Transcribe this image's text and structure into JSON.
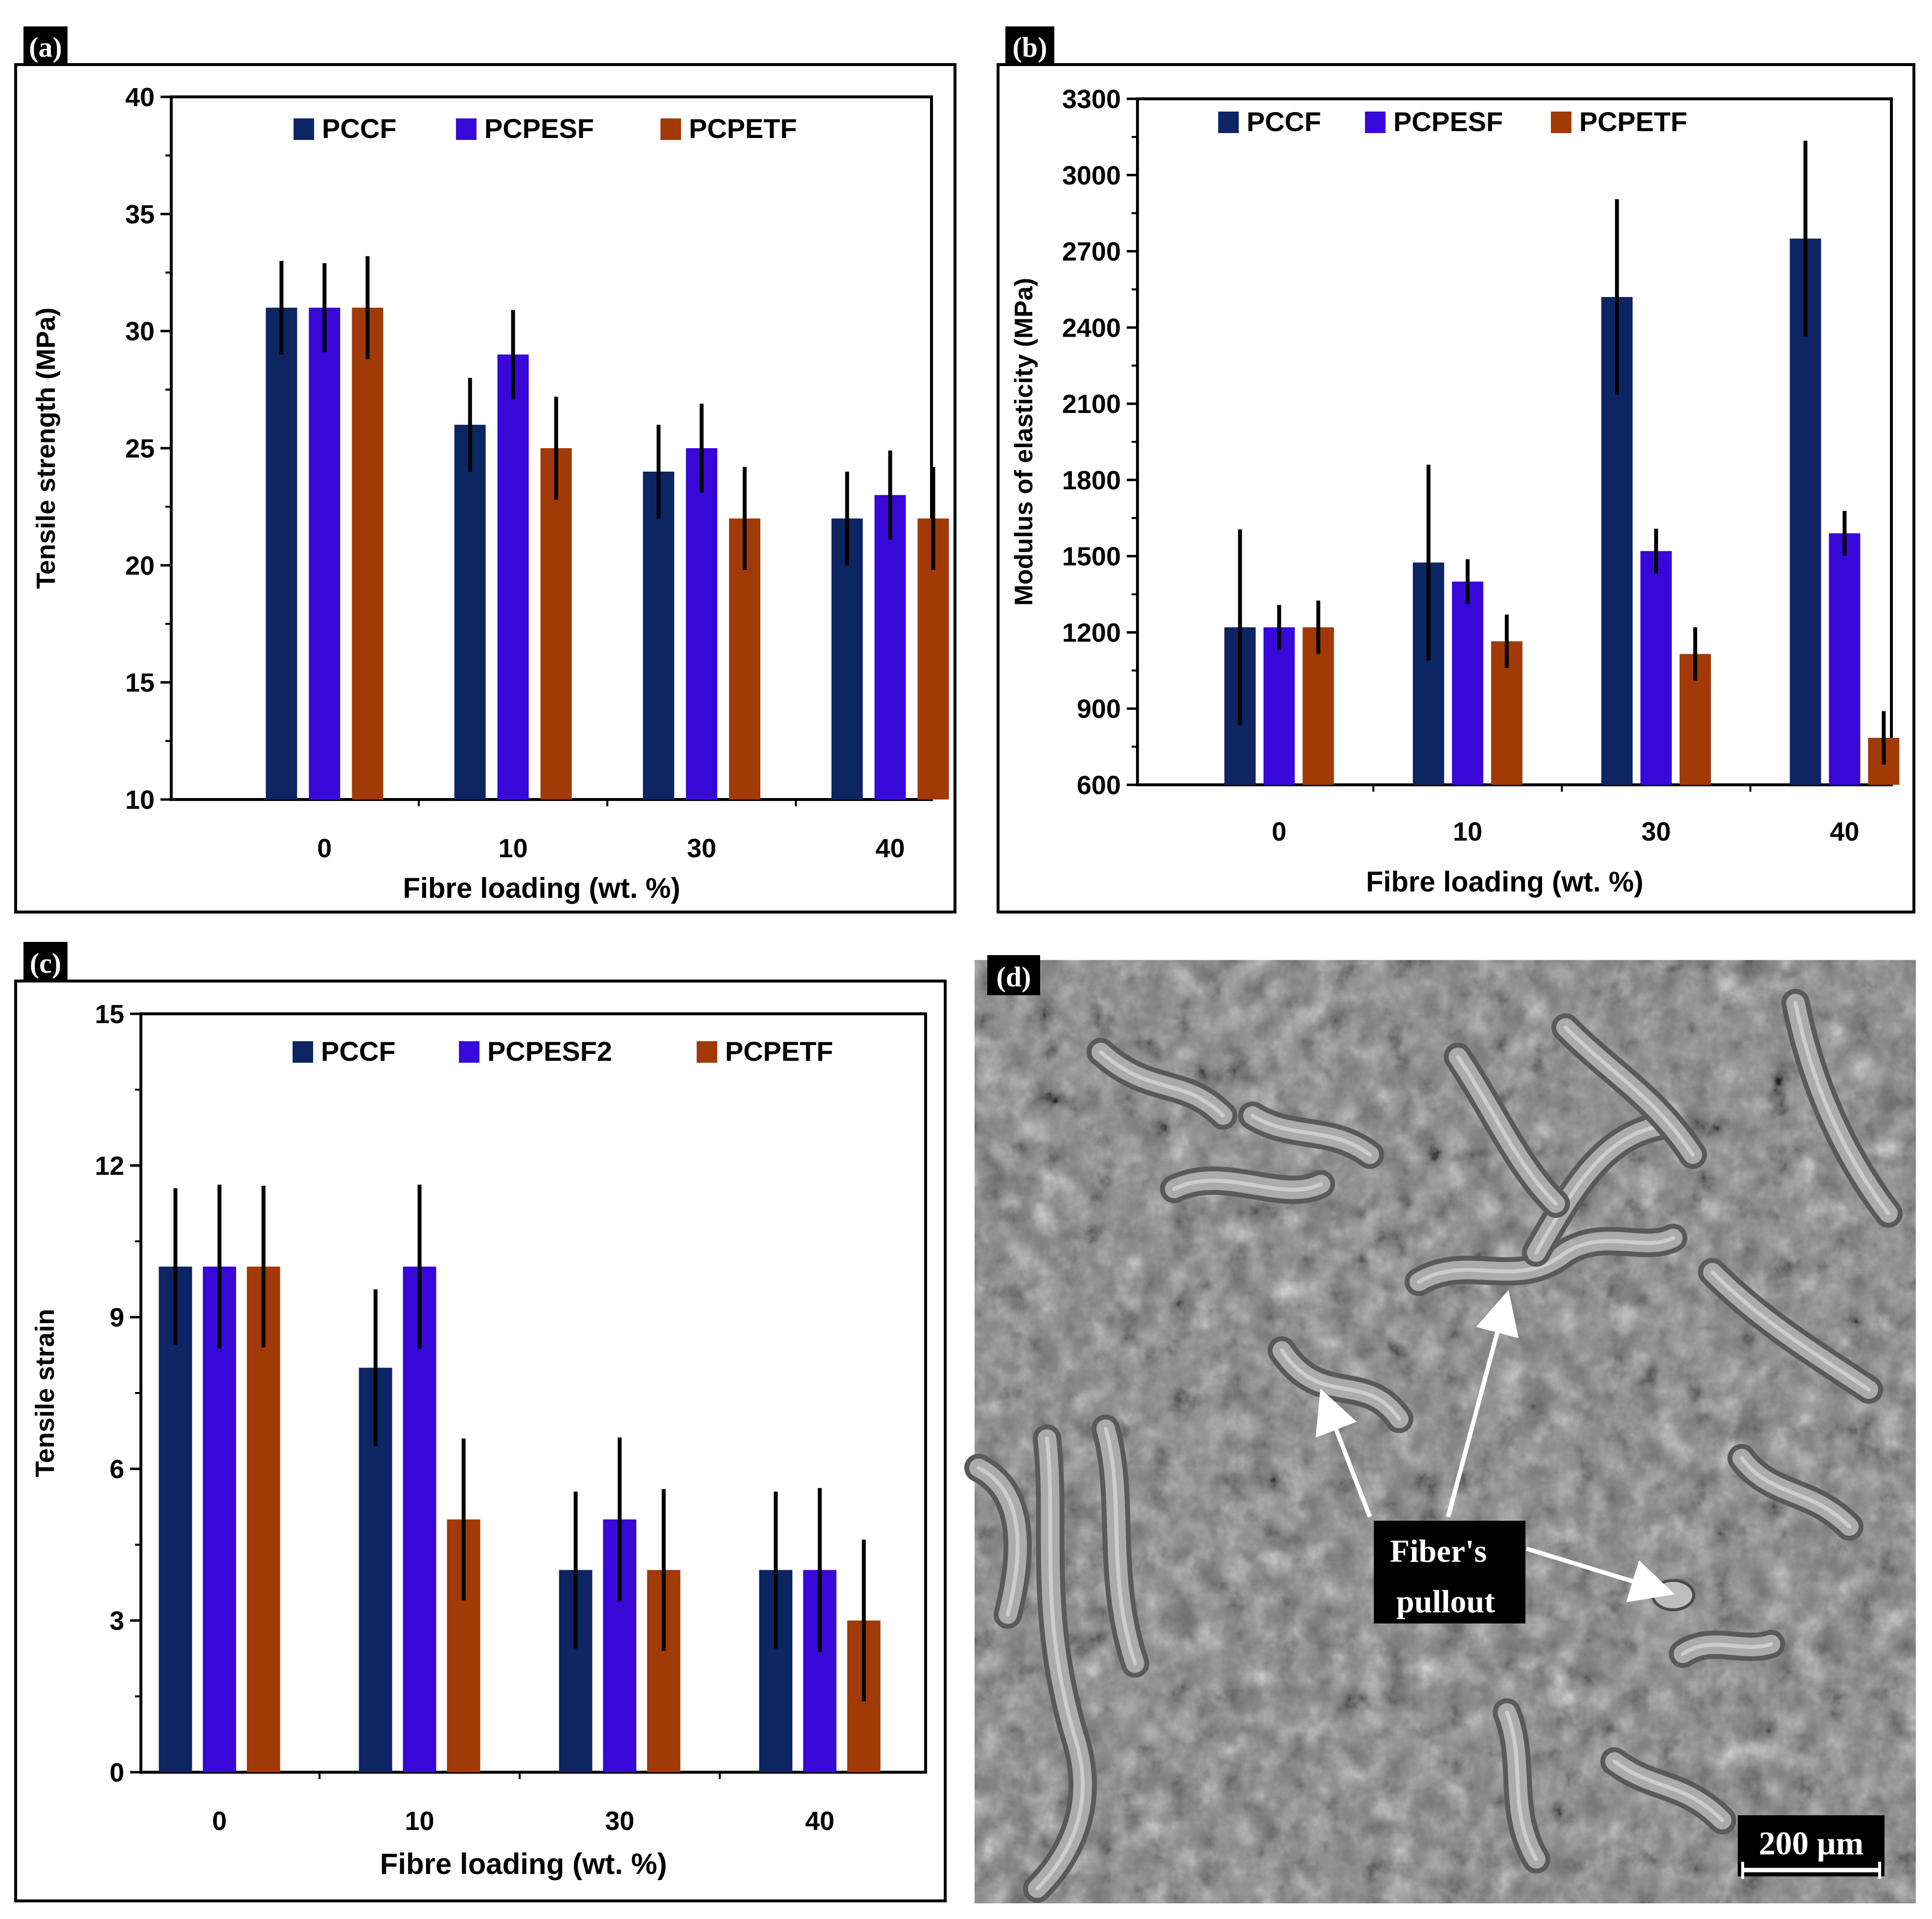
{
  "colors": {
    "PCCF": "#0d2563",
    "PCPESF": "#3808d8",
    "PCPETF": "#a13a06",
    "frame": "#000000"
  },
  "chart_data": [
    {
      "panel": "(a)",
      "type": "bar",
      "categories": [
        "0",
        "10",
        "30",
        "40"
      ],
      "series": [
        {
          "name": "PCCF",
          "values": [
            31,
            26,
            24,
            22
          ],
          "errors": [
            2,
            2,
            2,
            2
          ]
        },
        {
          "name": "PCPESF",
          "values": [
            31,
            29,
            25,
            23
          ],
          "errors": [
            1.9,
            1.9,
            1.9,
            1.9
          ]
        },
        {
          "name": "PCPETF",
          "values": [
            31,
            25,
            22,
            22
          ],
          "errors": [
            2.2,
            2.2,
            2.2,
            2.2
          ]
        }
      ],
      "xlabel": "Fibre loading (wt. %)",
      "ylabel": "Tensile strength (MPa)",
      "ylim": [
        10,
        40
      ],
      "yticks": [
        "10",
        "15",
        "20",
        "25",
        "30",
        "35",
        "40"
      ]
    },
    {
      "panel": "(b)",
      "type": "bar",
      "categories": [
        "0",
        "10",
        "30",
        "40"
      ],
      "series": [
        {
          "name": "PCCF",
          "values": [
            1220,
            1475,
            2520,
            2750
          ],
          "errors": [
            385,
            385,
            385,
            385
          ]
        },
        {
          "name": "PCPESF",
          "values": [
            1220,
            1400,
            1520,
            1590
          ],
          "errors": [
            88,
            88,
            88,
            88
          ]
        },
        {
          "name": "PCPETF",
          "values": [
            1220,
            1165,
            1115,
            785
          ],
          "errors": [
            105,
            105,
            105,
            105
          ]
        }
      ],
      "xlabel": "Fibre loading (wt. %)",
      "ylabel": "Modulus of elasticity (MPa)",
      "ylim": [
        600,
        3300
      ],
      "yticks": [
        "600",
        "900",
        "1200",
        "1500",
        "1800",
        "2100",
        "2400",
        "2700",
        "3000",
        "3300"
      ]
    },
    {
      "panel": "(c)",
      "type": "bar",
      "categories": [
        "0",
        "10",
        "30",
        "40"
      ],
      "series": [
        {
          "name": "PCCF",
          "values": [
            10,
            8,
            4,
            4
          ],
          "errors": [
            1.55,
            1.55,
            1.55,
            1.55
          ]
        },
        {
          "name": "PCPESF2",
          "values": [
            10,
            10,
            5,
            4
          ],
          "errors": [
            1.62,
            1.62,
            1.62,
            1.62
          ]
        },
        {
          "name": "PCPETF",
          "values": [
            10,
            5,
            4,
            3
          ],
          "errors": [
            1.6,
            1.6,
            1.6,
            1.6
          ]
        }
      ],
      "xlabel": "Fibre loading (wt. %)",
      "ylabel": "Tensile strain",
      "ylim": [
        0,
        15
      ],
      "yticks": [
        "0",
        "3",
        "6",
        "9",
        "12",
        "15"
      ]
    }
  ],
  "sem_panel": {
    "label": "(d)",
    "annotation_line1": "Fiber's",
    "annotation_line2": "pullout",
    "scale_bar": "200 μm"
  }
}
